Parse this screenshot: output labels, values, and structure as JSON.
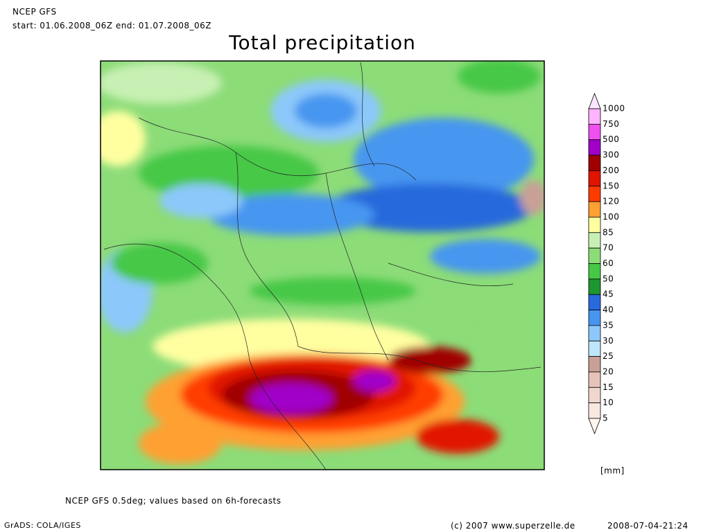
{
  "header": {
    "model": "NCEP GFS",
    "period": "start: 01.06.2008_06Z end: 01.07.2008_06Z",
    "title": "Total precipitation"
  },
  "colorbar": {
    "levels": [
      1000,
      750,
      500,
      300,
      200,
      150,
      120,
      100,
      85,
      70,
      60,
      50,
      45,
      40,
      35,
      30,
      25,
      20,
      15,
      10,
      5
    ],
    "colors": [
      "#ffe6ff",
      "#ffb4ff",
      "#f050f0",
      "#a000c8",
      "#a00000",
      "#e11400",
      "#ff3c00",
      "#ffa032",
      "#ffffa0",
      "#c8f0b4",
      "#8cdc78",
      "#46c846",
      "#1e9632",
      "#2869dc",
      "#4696f0",
      "#8cc8fa",
      "#bee6fa",
      "#c8a096",
      "#e6c3b9",
      "#f0d7cd",
      "#f8e8e0",
      "#fff5f0"
    ],
    "unit": "[mm]"
  },
  "footer": {
    "note": "NCEP GFS 0.5deg; values based on 6h-forecasts",
    "software": "GrADS: COLA/IGES",
    "copyright": "(c) 2007 www.superzelle.de",
    "timestamp": "2008-07-04-21:24"
  }
}
